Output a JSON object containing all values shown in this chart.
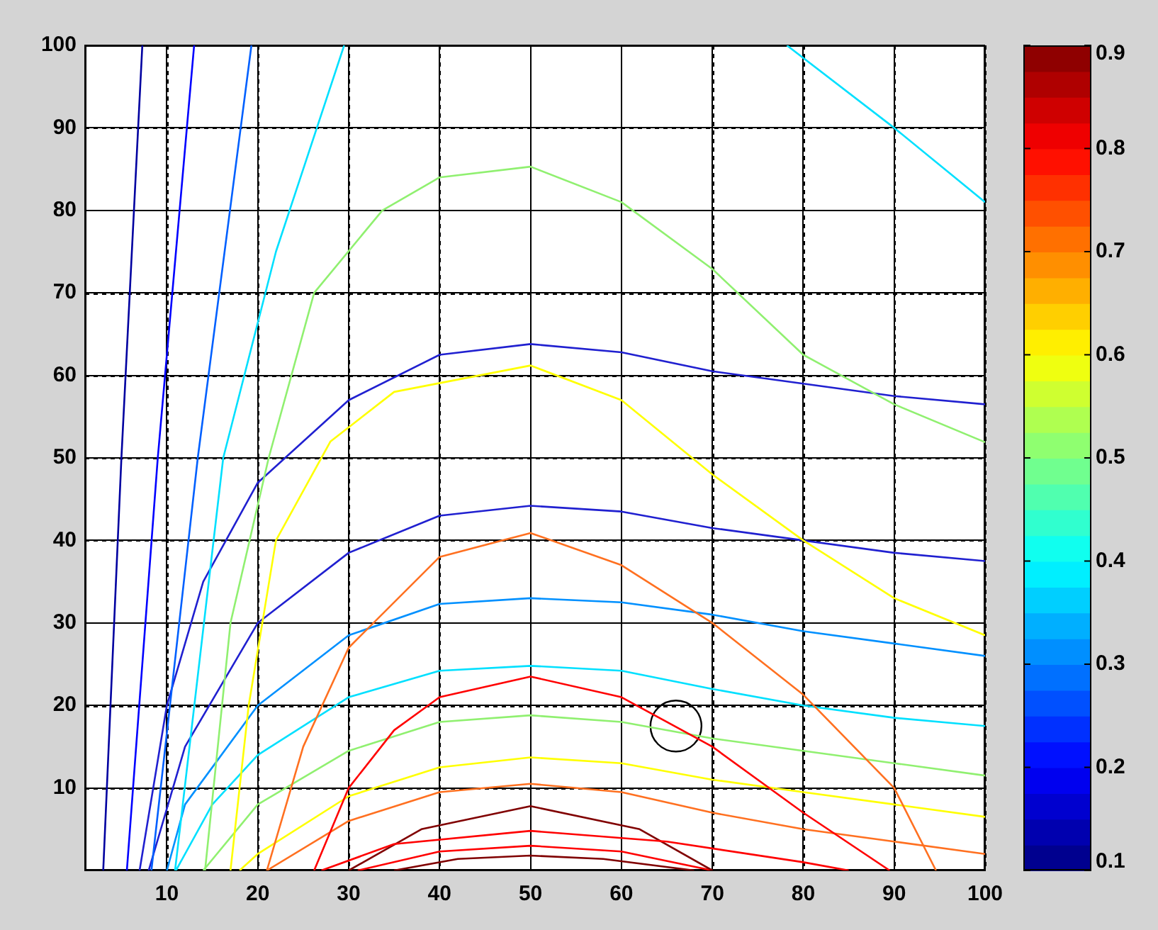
{
  "chart_data": {
    "type": "line",
    "xlim": [
      1,
      100
    ],
    "ylim": [
      0,
      100
    ],
    "xticks": [
      10,
      20,
      30,
      40,
      50,
      60,
      70,
      80,
      90,
      100
    ],
    "yticks": [
      10,
      20,
      30,
      40,
      50,
      60,
      70,
      80,
      90,
      100
    ],
    "grid": true,
    "legend": false,
    "marker": "none",
    "line_style": "solid",
    "clim": [
      0.1,
      0.9
    ],
    "cticks": [
      0.1,
      0.2,
      0.3,
      0.4,
      0.5,
      0.6,
      0.7,
      0.8,
      0.9
    ],
    "series": [
      {
        "color": "#0000a0",
        "x": [
          3,
          5,
          7.3
        ],
        "values": [
          0,
          50,
          100
        ]
      },
      {
        "color": "#0000ff",
        "x": [
          5.6,
          9,
          13
        ],
        "values": [
          0,
          50,
          100
        ]
      },
      {
        "color": "#0060ff",
        "x": [
          8.3,
          13.4,
          19.3
        ],
        "values": [
          0,
          50,
          100
        ]
      },
      {
        "color": "#00e0ff",
        "x": [
          10.9,
          16.2,
          22,
          29.5
        ],
        "values": [
          0,
          50,
          75,
          100
        ]
      },
      {
        "color": "#90f070",
        "x": [
          14.2,
          17,
          21.2,
          26.2,
          33.7,
          40,
          50,
          60,
          70,
          80,
          90,
          100
        ],
        "values": [
          0,
          30,
          50,
          70,
          80,
          84,
          85.3,
          81,
          72.9,
          62.5,
          56.5,
          51.9
        ]
      },
      {
        "color": "#ffff00",
        "x": [
          17,
          19,
          22,
          28,
          35,
          50,
          60,
          70,
          80,
          90,
          100
        ],
        "values": [
          0,
          20,
          40,
          52,
          58,
          61.2,
          57,
          48,
          40,
          33,
          28.5
        ]
      },
      {
        "color": "#2020d0",
        "x": [
          7,
          10,
          14,
          20,
          30,
          40,
          50,
          60,
          70,
          80,
          90,
          100
        ],
        "values": [
          0,
          20,
          35,
          47,
          57,
          62.5,
          63.8,
          62.8,
          60.5,
          59,
          57.5,
          56.5
        ]
      },
      {
        "color": "#2020d0",
        "x": [
          8,
          12,
          20,
          30,
          40,
          50,
          60,
          70,
          80,
          90,
          100
        ],
        "values": [
          0,
          15,
          30,
          38.5,
          43,
          44.2,
          43.5,
          41.5,
          40,
          38.5,
          37.5
        ]
      },
      {
        "color": "#ff7020",
        "x": [
          21,
          25,
          30,
          40,
          50,
          60,
          70,
          80,
          90,
          94.6
        ],
        "values": [
          0,
          15,
          27,
          38,
          40.9,
          37,
          30,
          21.3,
          10,
          0
        ]
      },
      {
        "color": "#0090ff",
        "x": [
          10,
          12,
          20,
          30,
          40,
          50,
          60,
          70,
          80,
          90,
          100
        ],
        "values": [
          0,
          8,
          20,
          28.5,
          32.3,
          33,
          32.5,
          31,
          29,
          27.5,
          26
        ]
      },
      {
        "color": "#00e0ff",
        "x": [
          11,
          15,
          20,
          30,
          40,
          50,
          60,
          70,
          80,
          90,
          100
        ],
        "values": [
          0,
          8,
          14,
          21,
          24.2,
          24.8,
          24.2,
          22,
          20,
          18.5,
          17.5
        ]
      },
      {
        "color": "#ff0000",
        "x": [
          26.2,
          30,
          35,
          40,
          50,
          60,
          70,
          80,
          89.5
        ],
        "values": [
          0,
          10,
          17,
          21,
          23.5,
          21,
          15,
          7,
          0
        ]
      },
      {
        "color": "#90f070",
        "x": [
          14,
          20,
          30,
          40,
          50,
          60,
          70,
          80,
          90,
          100
        ],
        "values": [
          0,
          8,
          14.5,
          18,
          18.8,
          18,
          16,
          14.5,
          13,
          11.5
        ]
      },
      {
        "color": "#ffff00",
        "x": [
          18,
          20,
          30,
          40,
          50,
          60,
          70,
          80,
          90,
          100
        ],
        "values": [
          0,
          2,
          9,
          12.5,
          13.7,
          13,
          11,
          9.5,
          8,
          6.5
        ]
      },
      {
        "color": "#ff7020",
        "x": [
          21,
          30,
          40,
          50,
          60,
          70,
          80,
          90,
          100
        ],
        "values": [
          0,
          6,
          9.5,
          10.5,
          9.5,
          7,
          5,
          3.5,
          2
        ]
      },
      {
        "color": "#ff0000",
        "x": [
          27,
          35,
          50,
          65,
          80,
          85
        ],
        "values": [
          0,
          3.2,
          4.8,
          3.5,
          1,
          0
        ]
      },
      {
        "color": "#800000",
        "x": [
          30,
          38,
          50,
          62,
          70
        ],
        "values": [
          0,
          5,
          7.8,
          5,
          0
        ]
      },
      {
        "color": "#ff0000",
        "x": [
          31,
          40,
          50,
          60,
          70
        ],
        "values": [
          0,
          2.3,
          3,
          2.3,
          0
        ]
      },
      {
        "color": "#800000",
        "x": [
          35,
          42,
          50,
          58,
          68
        ],
        "values": [
          0,
          1.4,
          1.8,
          1.4,
          0
        ]
      },
      {
        "color": "#00e0ff",
        "x": [
          78.2,
          90,
          100
        ],
        "values": [
          100,
          90,
          81
        ]
      },
      {
        "type": "scatter",
        "marker": "circle",
        "color": "#000000",
        "x": [
          66
        ],
        "values": [
          17.5
        ]
      }
    ]
  }
}
